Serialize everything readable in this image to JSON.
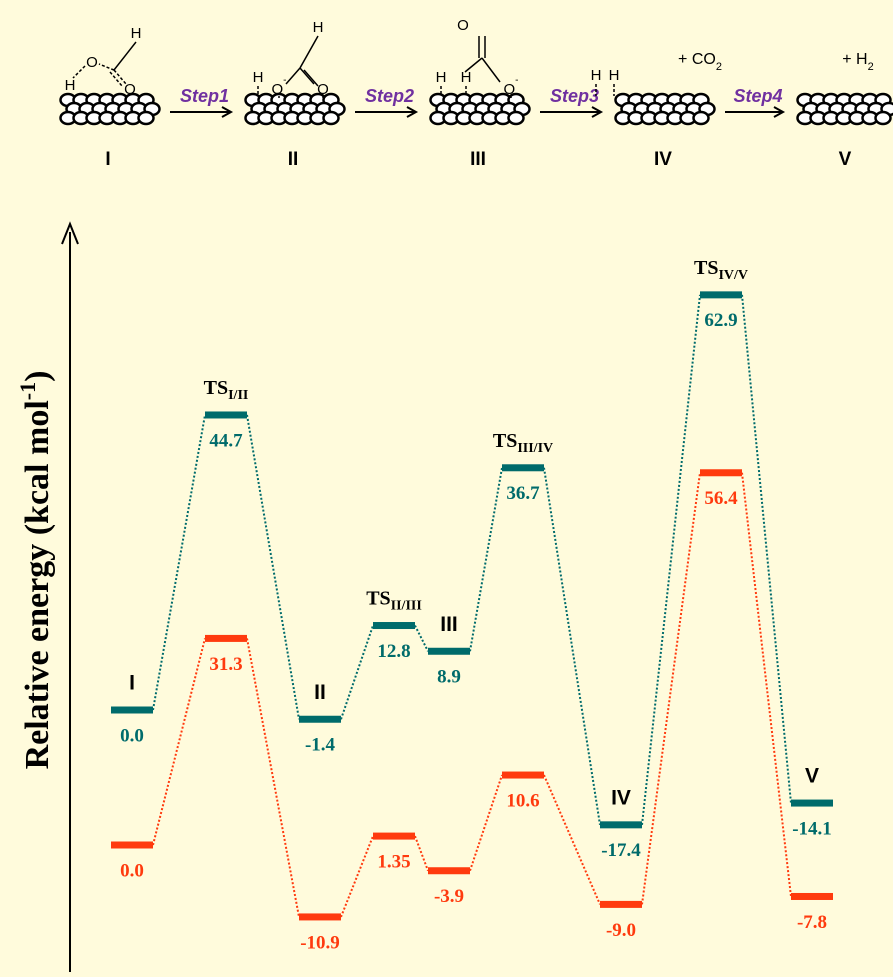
{
  "chart_data": {
    "type": "energy-profile",
    "axis_label": {
      "text": "Relative energy (kcal mol",
      "sup": "-1",
      "end": ")"
    },
    "categories": [
      "I",
      {
        "text": "TS",
        "sub": "I/II"
      },
      "II",
      {
        "text": "TS",
        "sub": "II/III"
      },
      "III",
      {
        "text": "TS",
        "sub": "III/IV"
      },
      "IV",
      {
        "text": "TS",
        "sub": "IV/V"
      },
      "V"
    ],
    "series": [
      {
        "color": "#006b6b",
        "values": [
          0,
          44.7,
          -1.4,
          12.8,
          8.9,
          36.7,
          -17.4,
          62.9,
          -14.1
        ],
        "value_labels": [
          "0.0",
          "44.7",
          "-1.4",
          "12.8",
          "8.9",
          "36.7",
          "-17.4",
          "62.9",
          "-14.1"
        ]
      },
      {
        "color": "#ff3a0e",
        "values": [
          0,
          31.3,
          -10.9,
          1.35,
          -3.9,
          10.6,
          -9,
          56.4,
          -7.8
        ],
        "value_labels": [
          "0.0",
          "31.3",
          "-10.9",
          "1.35",
          "-3.9",
          "10.6",
          "-9.0",
          "56.4",
          "-7.8"
        ]
      }
    ],
    "scheme": {
      "steps": [
        "Step1",
        "Step2",
        "Step3",
        "Step4"
      ],
      "species": [
        "I",
        "II",
        "III",
        "IV",
        "V"
      ],
      "atoms": [
        [
          {
            "text": "H"
          },
          {
            "text": "O"
          },
          {
            "text": "O"
          },
          {
            "text": "H"
          }
        ],
        [
          {
            "text": "H"
          },
          {
            "text": "H"
          },
          {
            "text": "O",
            "sup": "-"
          },
          {
            "text": "O"
          }
        ],
        [
          {
            "text": "H"
          },
          {
            "text": "H"
          },
          {
            "text": "O"
          },
          {
            "text": "O",
            "sup": "-"
          }
        ],
        [
          {
            "text": "H"
          },
          {
            "text": "H"
          }
        ],
        []
      ],
      "products": [
        {
          "text": "+ CO",
          "sub": "2"
        },
        {
          "text": "+ H",
          "sub": "2"
        }
      ]
    }
  }
}
